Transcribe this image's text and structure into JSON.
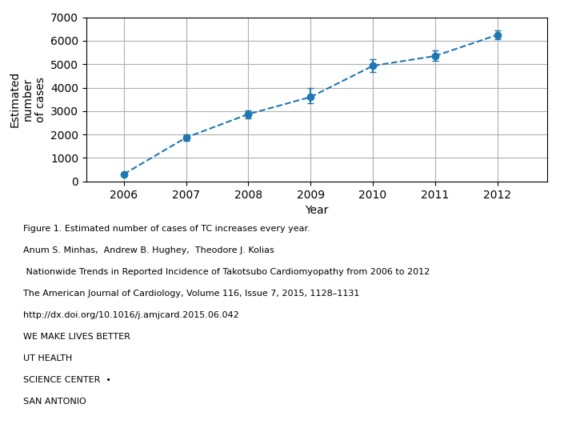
{
  "chart_data": {
    "type": "errorbar",
    "x": [
      2006,
      2007,
      2008,
      2009,
      2010,
      2011,
      2012
    ],
    "values": [
      310,
      1870,
      2870,
      3600,
      4930,
      5350,
      6250
    ],
    "yerr_low": [
      0,
      120,
      180,
      260,
      280,
      220,
      180
    ],
    "yerr_high": [
      0,
      130,
      150,
      390,
      270,
      230,
      200
    ],
    "x_label": "Year",
    "y_label": "Estimated\nnumber\nof cases",
    "xlim": [
      2005.4,
      2012.8
    ],
    "xticks": [
      2006,
      2007,
      2008,
      2009,
      2010,
      2011,
      2012
    ],
    "ylim": [
      0,
      7000
    ],
    "yticks": [
      0,
      1000,
      2000,
      3000,
      4000,
      5000,
      6000,
      7000
    ],
    "grid": true,
    "marker": "o",
    "line_style": "dashed",
    "annotations": [
      "Figure 1. Estimated number of cases of TC increases every year.",
      "Anum S. Minhas,  Andrew B. Hughey,  Theodore J. Kolias",
      " Nationwide Trends in Reported Incidence of Takotsubo Cardiomyopathy from 2006 to 2012",
      "The American Journal of Cardiology, Volume 116, Issue 7, 2015, 1128–1131",
      "http://dx.doi.org/10.1016/j.amjcard.2015.06.042",
      "WE MAKE LIVES BETTER",
      "UT HEALTH",
      "SCIENCE CENTER  •",
      "SAN ANTONIO"
    ]
  }
}
